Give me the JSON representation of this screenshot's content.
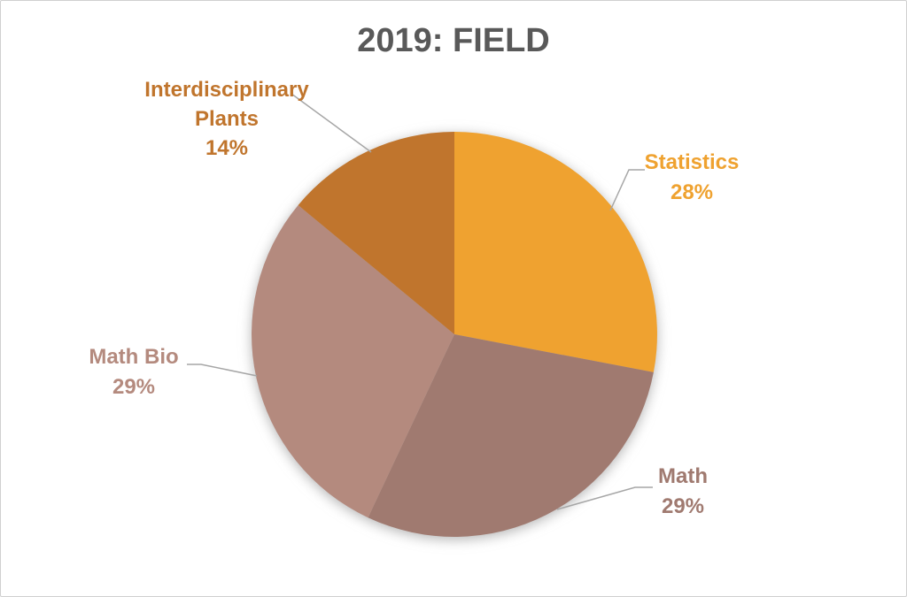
{
  "window": {
    "background_color": "#FFFFFF",
    "border_color": "#D0D0D0"
  },
  "chart_data": {
    "type": "pie",
    "title": "2019: FIELD",
    "title_color": "#595959",
    "categories": [
      "Statistics",
      "Math",
      "Math Bio",
      "Interdisciplinary Plants"
    ],
    "values": [
      28,
      29,
      29,
      14
    ],
    "unit": "percent",
    "start_angle_deg": 0,
    "direction": "clockwise",
    "legend_position": "none",
    "label_style": "outside-with-leader-lines",
    "leader_line_color": "#A6A6A6",
    "slices": [
      {
        "name": "Statistics",
        "value": 28,
        "pct_label": "28%",
        "color": "#EFA230",
        "label_lines": [
          "Statistics",
          "28%"
        ]
      },
      {
        "name": "Math",
        "value": 29,
        "pct_label": "29%",
        "color": "#A07A70",
        "label_lines": [
          "Math",
          "29%"
        ]
      },
      {
        "name": "Math Bio",
        "value": 29,
        "pct_label": "29%",
        "color": "#B48A7E",
        "label_lines": [
          "Math Bio",
          "29%"
        ]
      },
      {
        "name": "Interdisciplinary Plants",
        "value": 14,
        "pct_label": "14%",
        "color": "#C0752D",
        "label_lines": [
          "Interdisciplinary",
          "Plants",
          "14%"
        ]
      }
    ]
  }
}
